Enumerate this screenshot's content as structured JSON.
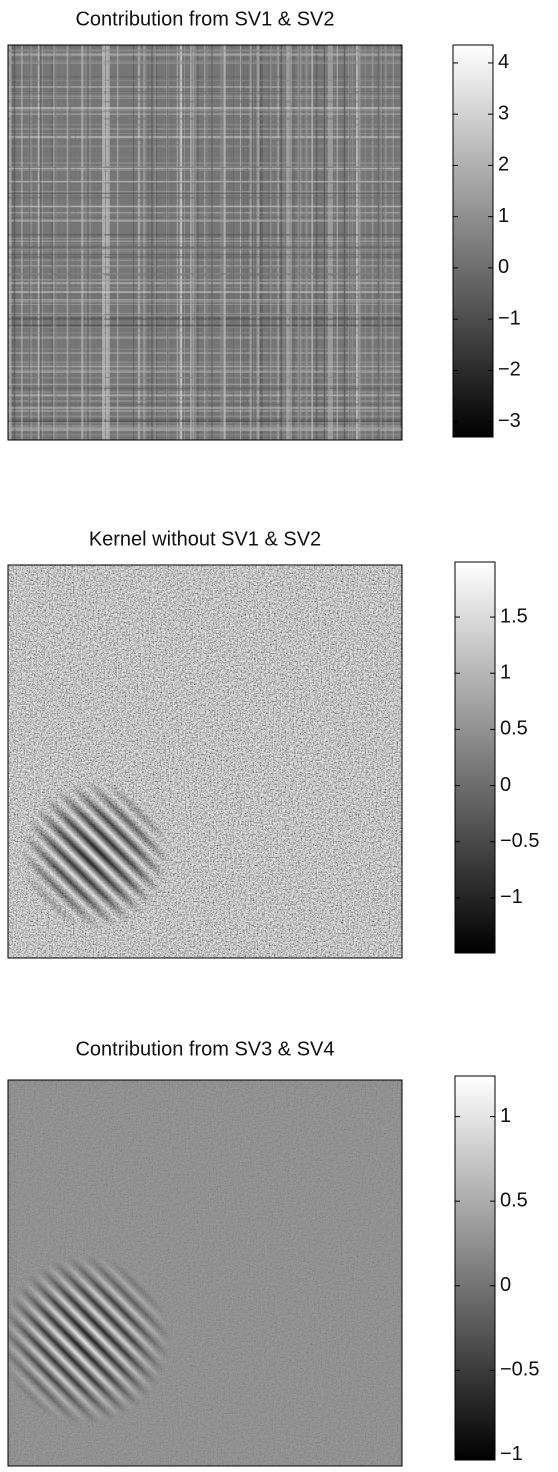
{
  "chart_data": [
    {
      "type": "image",
      "title": "Contribution from SV1 & SV2",
      "colormap": "gray",
      "ylim": [
        -3.3,
        4.35
      ],
      "yticks": [
        4,
        3,
        2,
        1,
        0,
        {
          "value": -1,
          "label": "−1"
        },
        {
          "value": -2,
          "label": "−2"
        },
        {
          "value": -3,
          "label": "−3"
        }
      ]
    },
    {
      "type": "image",
      "title": "Kernel without SV1 & SV2",
      "colormap": "gray",
      "ylim": [
        -1.49,
        1.99
      ],
      "yticks": [
        1.5,
        1,
        0.5,
        0,
        {
          "value": -0.5,
          "label": "−0.5"
        },
        {
          "value": -1,
          "label": "−1"
        }
      ]
    },
    {
      "type": "image",
      "title": "Contribution from SV3 & SV4",
      "colormap": "gray",
      "ylim": [
        -1.03,
        1.24
      ],
      "yticks": [
        1,
        0.5,
        0,
        {
          "value": -0.5,
          "label": "−0.5"
        },
        {
          "value": -1,
          "label": "−1"
        }
      ]
    }
  ]
}
